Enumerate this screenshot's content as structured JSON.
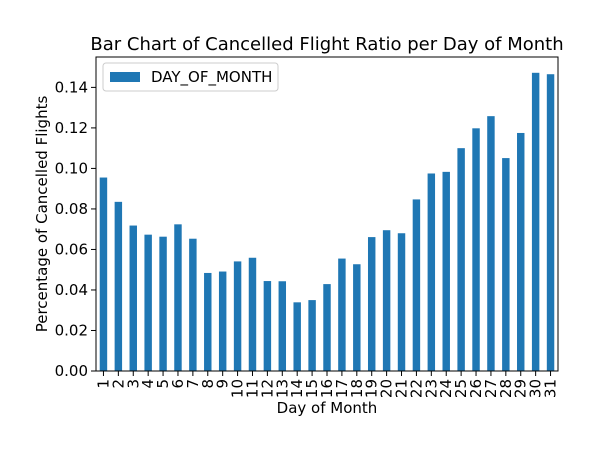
{
  "chart_data": {
    "type": "bar",
    "title": "Bar Chart of Cancelled Flight Ratio per Day of Month",
    "xlabel": "Day of Month",
    "ylabel": "Percentage of Cancelled Flights",
    "ylim": [
      0,
      0.155
    ],
    "yticks": [
      "0.00",
      "0.02",
      "0.04",
      "0.06",
      "0.08",
      "0.10",
      "0.12",
      "0.14"
    ],
    "legend_position": "top-left",
    "bar_color": "#1f77b4",
    "categories": [
      "1",
      "2",
      "3",
      "4",
      "5",
      "6",
      "7",
      "8",
      "9",
      "10",
      "11",
      "12",
      "13",
      "14",
      "15",
      "16",
      "17",
      "18",
      "19",
      "20",
      "21",
      "22",
      "23",
      "24",
      "25",
      "26",
      "27",
      "28",
      "29",
      "30",
      "31"
    ],
    "series": [
      {
        "name": "DAY_OF_MONTH",
        "values": [
          0.0955,
          0.0835,
          0.0718,
          0.0673,
          0.0663,
          0.0724,
          0.0653,
          0.0484,
          0.0491,
          0.0541,
          0.0559,
          0.0444,
          0.0443,
          0.0339,
          0.035,
          0.0429,
          0.0555,
          0.0527,
          0.0661,
          0.0695,
          0.068,
          0.0847,
          0.0975,
          0.0983,
          0.11,
          0.1198,
          0.1258,
          0.1051,
          0.1175,
          0.1472,
          0.1465
        ]
      }
    ]
  }
}
